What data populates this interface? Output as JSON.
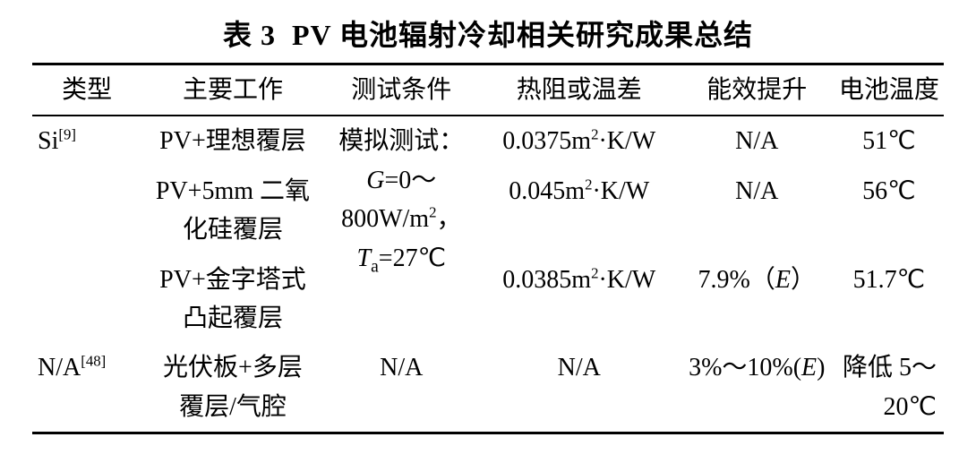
{
  "caption_prefix": "表 3",
  "caption_title": "PV 电池辐射冷却相关研究成果总结",
  "headers": {
    "type": "类型",
    "work": "主要工作",
    "cond": "测试条件",
    "res": "热阻或温差",
    "eff": "能效提升",
    "temp": "电池温度"
  },
  "group1": {
    "type_prefix": "Si",
    "type_ref": "[9]",
    "cond_line1_pre": "模拟测试：",
    "cond_line2_var": "G",
    "cond_line2_rest": "=0～",
    "cond_line3_val": "800W/m",
    "cond_line3_sup": "2",
    "cond_line3_tail": "，",
    "cond_line4_var": "T",
    "cond_line4_sub": "a",
    "cond_line4_rest": "=27℃"
  },
  "row1": {
    "work": "PV+理想覆层",
    "res_val": "0.0375m",
    "res_sup": "2",
    "res_tail": "·K/W",
    "eff": "N/A",
    "temp": "51℃"
  },
  "row2": {
    "work_line1": "PV+5mm 二氧",
    "work_line2": "化硅覆层",
    "res_val": "0.045m",
    "res_sup": "2",
    "res_tail": "·K/W",
    "eff": "N/A",
    "temp": "56℃"
  },
  "row3": {
    "work_line1": "PV+金字塔式",
    "work_line2": "凸起覆层",
    "res_val": "0.0385m",
    "res_sup": "2",
    "res_tail": "·K/W",
    "eff_val": "7.9%（",
    "eff_var": "E",
    "eff_tail": "）",
    "temp": "51.7℃"
  },
  "group2": {
    "type_prefix": "N/A",
    "type_ref": "[48]"
  },
  "row4": {
    "work_line1": "光伏板+多层",
    "work_line2": "覆层/气腔",
    "cond": "N/A",
    "res": "N/A",
    "eff_val": "3%～10%(",
    "eff_var": "E",
    "eff_tail": ")",
    "temp_line1": "降低 5～",
    "temp_line2": "20℃"
  }
}
